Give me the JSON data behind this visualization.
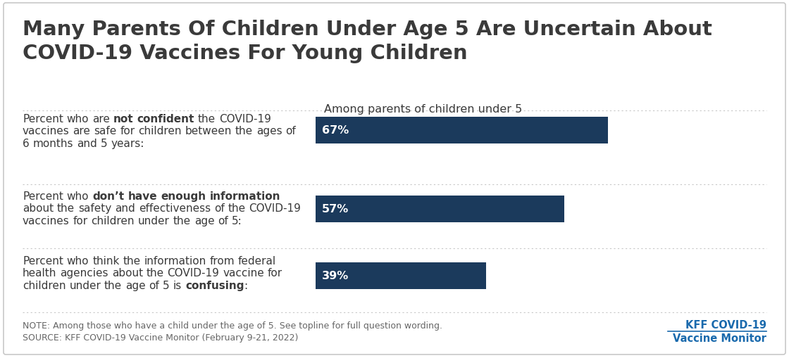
{
  "title_line1": "Many Parents Of Children Under Age 5 Are Uncertain About",
  "title_line2": "COVID-19 Vaccines For Young Children",
  "column_header": "Among parents of children under 5",
  "bar_color": "#1b3a5c",
  "text_color": "#3a3a3a",
  "background_color": "#ffffff",
  "border_color": "#c8c8c8",
  "values": [
    67,
    57,
    39
  ],
  "labels": [
    "67%",
    "57%",
    "39%"
  ],
  "max_value": 100,
  "note_line1": "NOTE: Among those who have a child under the age of 5. See topline for full question wording.",
  "note_line2": "SOURCE: KFF COVID-19 Vaccine Monitor (February 9-21, 2022)",
  "source_label_line1": "KFF COVID-19",
  "source_label_line2": "Vaccine Monitor",
  "source_color": "#1a6aad",
  "divider_color": "#c8c8c8",
  "label_fontsize": 11.0,
  "title_fontsize": 21.0,
  "header_fontsize": 11.5,
  "bar_label_fontsize": 11.5,
  "note_fontsize": 9.0,
  "source_fontsize": 10.5
}
